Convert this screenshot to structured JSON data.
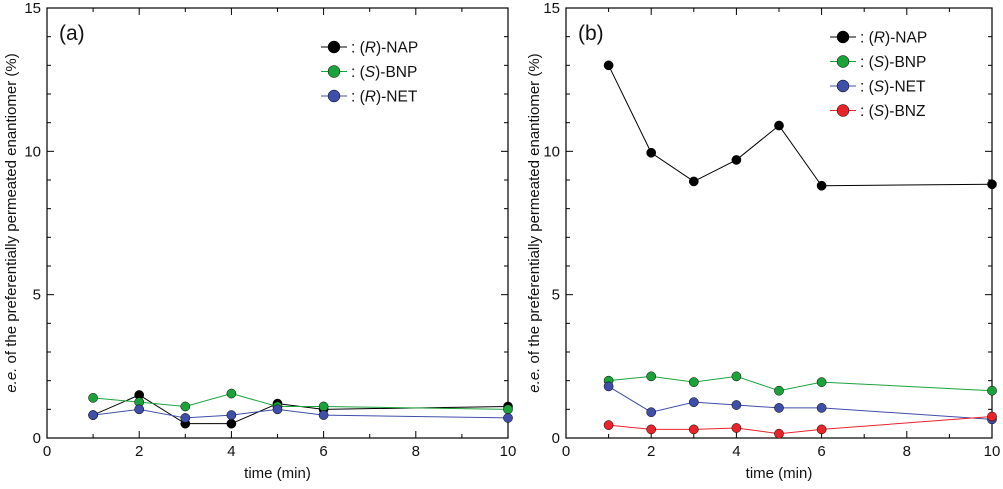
{
  "chart_data": [
    {
      "type": "line",
      "panel_label": "(a)",
      "xlabel": "time (min)",
      "ylabel_italic": "e.e.",
      "ylabel_rest": " of the preferentially permeated enantiomer (%)",
      "xlim": [
        0,
        10
      ],
      "ylim": [
        0,
        15
      ],
      "xticks": [
        0,
        2,
        4,
        6,
        8,
        10
      ],
      "yticks": [
        0,
        5,
        10,
        15
      ],
      "legend_position": "top-right",
      "series": [
        {
          "prefix": ": (",
          "config": "R",
          "suffix": ")-NAP",
          "color": "#000000",
          "x": [
            1,
            2,
            3,
            4,
            5,
            6,
            10
          ],
          "y": [
            0.8,
            1.5,
            0.5,
            0.5,
            1.2,
            1.0,
            1.1
          ]
        },
        {
          "prefix": ": (",
          "config": "S",
          "suffix": ")-BNP",
          "color": "#1aa33a",
          "x": [
            1,
            2,
            3,
            4,
            5,
            6,
            10
          ],
          "y": [
            1.4,
            1.25,
            1.1,
            1.55,
            1.1,
            1.1,
            1.0
          ]
        },
        {
          "prefix": ": (",
          "config": "R",
          "suffix": ")-NET",
          "color": "#3f4ea8",
          "x": [
            1,
            2,
            3,
            4,
            5,
            6,
            10
          ],
          "y": [
            0.8,
            1.0,
            0.7,
            0.8,
            1.0,
            0.8,
            0.7
          ]
        }
      ]
    },
    {
      "type": "line",
      "panel_label": "(b)",
      "xlabel": "time (min)",
      "ylabel_italic": "e.e.",
      "ylabel_rest": " of the preferentially permeated enantiomer (%)",
      "xlim": [
        0,
        10
      ],
      "ylim": [
        0,
        15
      ],
      "xticks": [
        0,
        2,
        4,
        6,
        8,
        10
      ],
      "yticks": [
        0,
        5,
        10,
        15
      ],
      "legend_position": "top-right",
      "series": [
        {
          "prefix": ": (",
          "config": "R",
          "suffix": ")-NAP",
          "color": "#000000",
          "x": [
            1,
            2,
            3,
            4,
            5,
            6,
            10
          ],
          "y": [
            13.0,
            9.95,
            8.95,
            9.7,
            10.9,
            8.8,
            8.85
          ]
        },
        {
          "prefix": ": (",
          "config": "S",
          "suffix": ")-BNP",
          "color": "#1aa33a",
          "x": [
            1,
            2,
            3,
            4,
            5,
            6,
            10
          ],
          "y": [
            2.0,
            2.15,
            1.95,
            2.15,
            1.65,
            1.95,
            1.65
          ]
        },
        {
          "prefix": ": (",
          "config": "S",
          "suffix": ")-NET",
          "color": "#3f4ea8",
          "x": [
            1,
            2,
            3,
            4,
            5,
            6,
            10
          ],
          "y": [
            1.8,
            0.9,
            1.25,
            1.15,
            1.05,
            1.05,
            0.65
          ]
        },
        {
          "prefix": ": (",
          "config": "S",
          "suffix": ")-BNZ",
          "color": "#e8232a",
          "x": [
            1,
            2,
            3,
            4,
            5,
            6,
            10
          ],
          "y": [
            0.45,
            0.3,
            0.3,
            0.35,
            0.15,
            0.3,
            0.75
          ]
        }
      ]
    }
  ]
}
